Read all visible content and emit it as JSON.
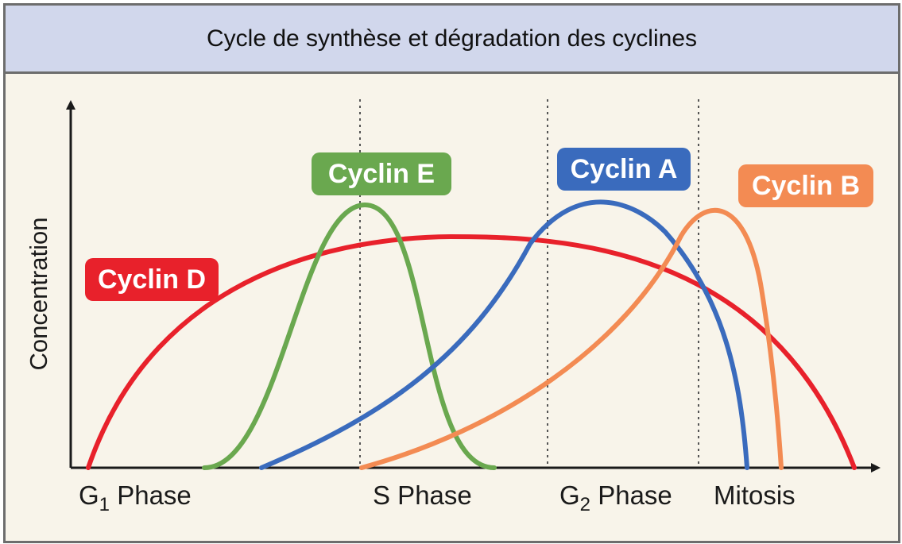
{
  "chart_data": {
    "type": "line",
    "title": "Cycle de synthèse et dégradation des cyclines",
    "xlabel": "",
    "ylabel": "Concentration",
    "axis_ticks": false,
    "grid": false,
    "phases": [
      {
        "label": "G",
        "sub": "1",
        "suffix": " Phase"
      },
      {
        "label": "S Phase",
        "sub": "",
        "suffix": ""
      },
      {
        "label": "G",
        "sub": "2",
        "suffix": " Phase"
      },
      {
        "label": "Mitosis",
        "sub": "",
        "suffix": ""
      }
    ],
    "phase_boundaries": [
      "G1/S",
      "S/G2",
      "G2/M"
    ],
    "series": [
      {
        "name": "Cyclin D",
        "color": "#e8212b",
        "label_fill": "#e8212b",
        "description": "broad arch rising in early G1, peaking mid-cycle, falling to zero at end of mitosis"
      },
      {
        "name": "Cyclin E",
        "color": "#6aa84f",
        "label_fill": "#6aa84f",
        "description": "sharp peak at the G1/S transition, degraded during early S phase"
      },
      {
        "name": "Cyclin A",
        "color": "#3a6bbd",
        "label_fill": "#3a6bbd",
        "description": "rises through S phase, peaks in G2, falls sharply in mitosis"
      },
      {
        "name": "Cyclin B",
        "color": "#f38b53",
        "label_fill": "#f38b53",
        "description": "rises from the start of S phase, peaks at G2/M transition, degraded in mitosis"
      }
    ]
  }
}
